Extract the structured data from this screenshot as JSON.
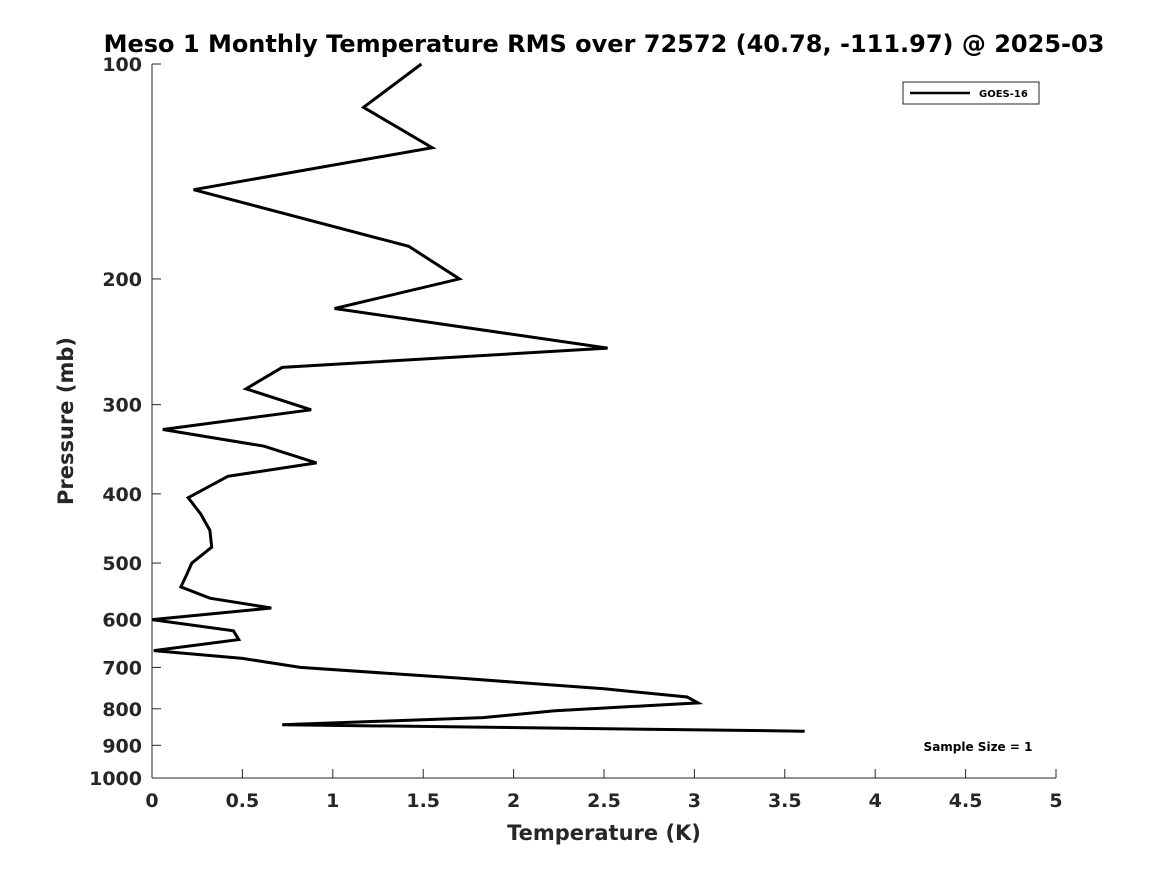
{
  "chart_data": {
    "type": "line",
    "title": "Meso 1 Monthly Temperature RMS over 72572 (40.78, -111.97) @ 2025-03",
    "xlabel": "Temperature (K)",
    "ylabel": "Pressure (mb)",
    "xlim": [
      0,
      5
    ],
    "ylim": [
      100,
      1000
    ],
    "y_scale": "log",
    "y_reversed": true,
    "x_ticks": [
      0,
      0.5,
      1,
      1.5,
      2,
      2.5,
      3,
      3.5,
      4,
      4.5,
      5
    ],
    "x_tick_labels": [
      "0",
      "0.5",
      "1",
      "1.5",
      "2",
      "2.5",
      "3",
      "3.5",
      "4",
      "4.5",
      "5"
    ],
    "y_ticks": [
      100,
      200,
      300,
      400,
      500,
      600,
      700,
      800,
      900,
      1000
    ],
    "y_tick_labels": [
      "100",
      "200",
      "300",
      "400",
      "500",
      "600",
      "700",
      "800",
      "900",
      "1000"
    ],
    "grid": false,
    "legend_position": "top-right",
    "annotation": "Sample Size = 1",
    "series": [
      {
        "name": "GOES-16",
        "color": "#000000",
        "points": [
          {
            "x": 1.49,
            "y": 100
          },
          {
            "x": 1.17,
            "y": 115
          },
          {
            "x": 1.55,
            "y": 131
          },
          {
            "x": 0.23,
            "y": 150
          },
          {
            "x": 1.42,
            "y": 180
          },
          {
            "x": 1.7,
            "y": 200
          },
          {
            "x": 1.01,
            "y": 220
          },
          {
            "x": 2.52,
            "y": 250
          },
          {
            "x": 0.72,
            "y": 266
          },
          {
            "x": 0.52,
            "y": 285
          },
          {
            "x": 0.88,
            "y": 305
          },
          {
            "x": 0.06,
            "y": 325
          },
          {
            "x": 0.62,
            "y": 343
          },
          {
            "x": 0.91,
            "y": 362
          },
          {
            "x": 0.42,
            "y": 378
          },
          {
            "x": 0.2,
            "y": 405
          },
          {
            "x": 0.27,
            "y": 427
          },
          {
            "x": 0.32,
            "y": 450
          },
          {
            "x": 0.33,
            "y": 475
          },
          {
            "x": 0.22,
            "y": 500
          },
          {
            "x": 0.19,
            "y": 520
          },
          {
            "x": 0.16,
            "y": 540
          },
          {
            "x": 0.32,
            "y": 560
          },
          {
            "x": 0.66,
            "y": 578
          },
          {
            "x": 0.0,
            "y": 600
          },
          {
            "x": 0.45,
            "y": 622
          },
          {
            "x": 0.48,
            "y": 640
          },
          {
            "x": 0.01,
            "y": 663
          },
          {
            "x": 0.5,
            "y": 680
          },
          {
            "x": 0.82,
            "y": 700
          },
          {
            "x": 1.71,
            "y": 725
          },
          {
            "x": 2.5,
            "y": 750
          },
          {
            "x": 2.96,
            "y": 770
          },
          {
            "x": 3.02,
            "y": 785
          },
          {
            "x": 2.23,
            "y": 805
          },
          {
            "x": 1.83,
            "y": 823
          },
          {
            "x": 0.72,
            "y": 842
          },
          {
            "x": 3.61,
            "y": 860
          }
        ]
      }
    ]
  }
}
